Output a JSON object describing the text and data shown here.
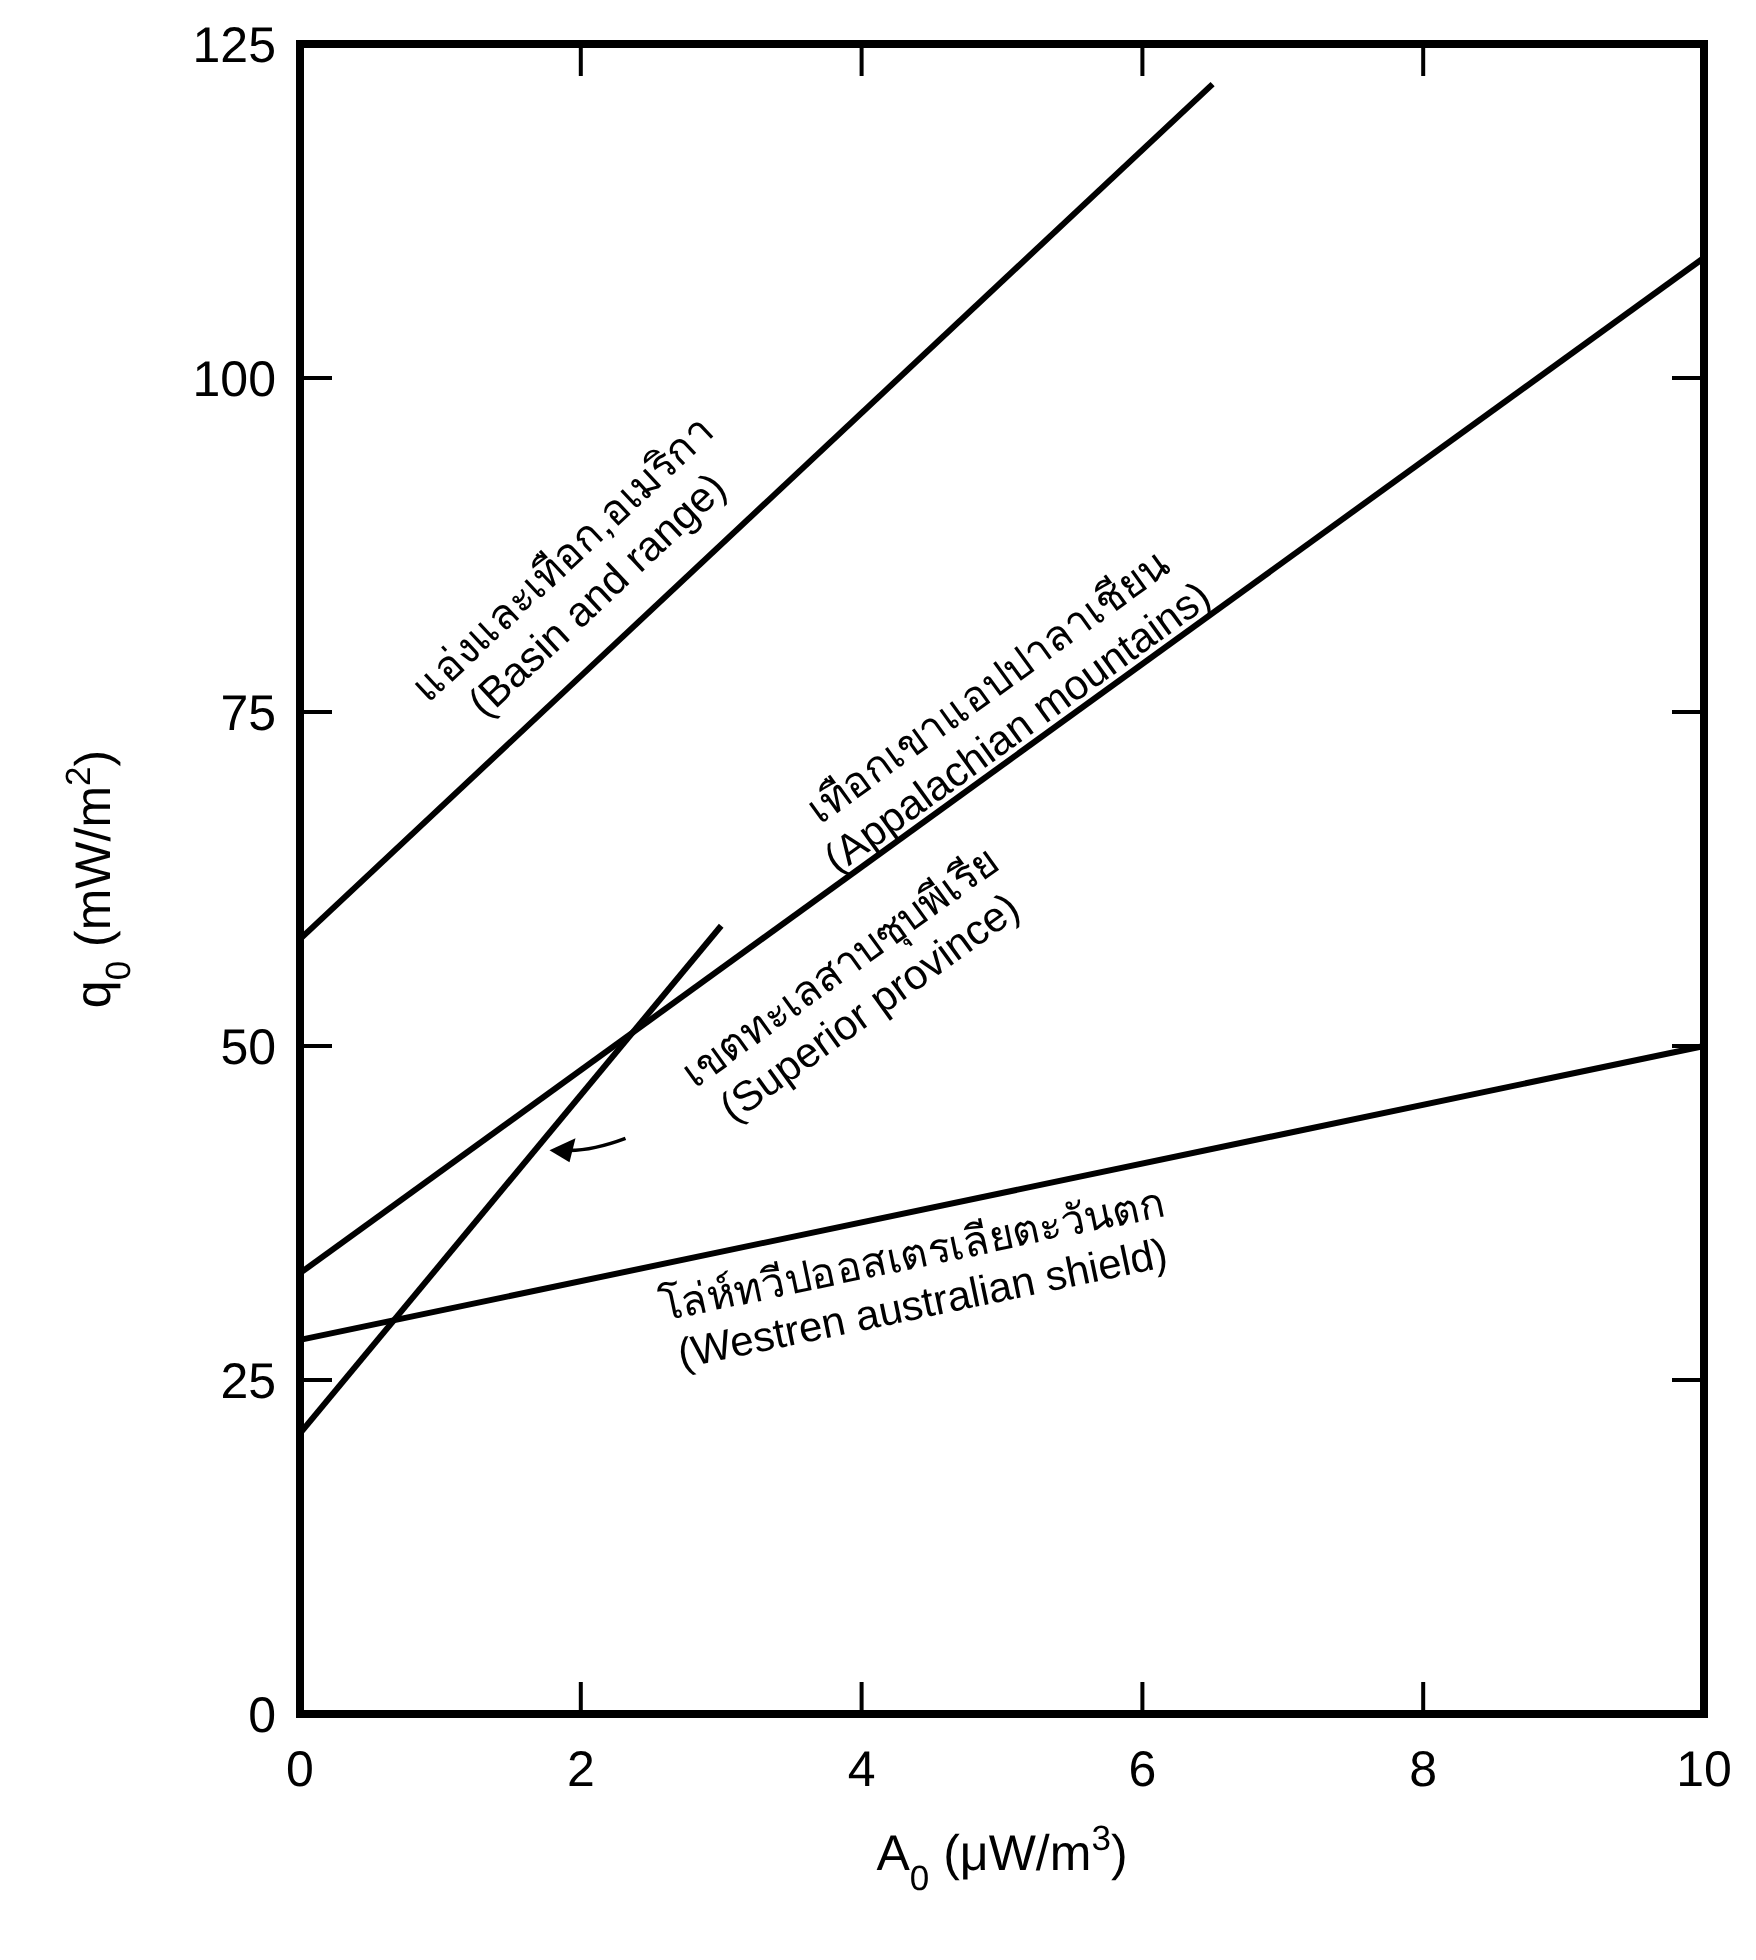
{
  "chart_data": {
    "type": "line",
    "xlabel": "A$_{0}$ (μW/m$^{3}$)",
    "ylabel": "q$_{0}$ (mW/m$^{2}$)",
    "xlim": [
      0,
      10
    ],
    "ylim": [
      0,
      125
    ],
    "xticks": [
      0,
      2,
      4,
      6,
      8,
      10
    ],
    "yticks": [
      0,
      25,
      50,
      75,
      100,
      125
    ],
    "grid": false,
    "series": [
      {
        "name": "แอ่งและเทือก,อเมริกา\n(Basin and range)",
        "color": "#000000",
        "x": [
          0,
          6.5
        ],
        "values": [
          58,
          122
        ]
      },
      {
        "name": "เทือกเขาแอปปาลาเชียน\n(Appalachian mountains)",
        "color": "#000000",
        "x": [
          0,
          10
        ],
        "values": [
          33,
          109
        ]
      },
      {
        "name": "เขตทะเลสาบซุบพีเรีย\n(Superior province)",
        "color": "#000000",
        "x": [
          0,
          3
        ],
        "values": [
          21,
          59
        ]
      },
      {
        "name": "โล่ห์ทวีปออสเตรเลียตะวันตก\n(Westren australian shield)",
        "color": "#000000",
        "x": [
          0,
          10
        ],
        "values": [
          28,
          50
        ]
      }
    ]
  }
}
